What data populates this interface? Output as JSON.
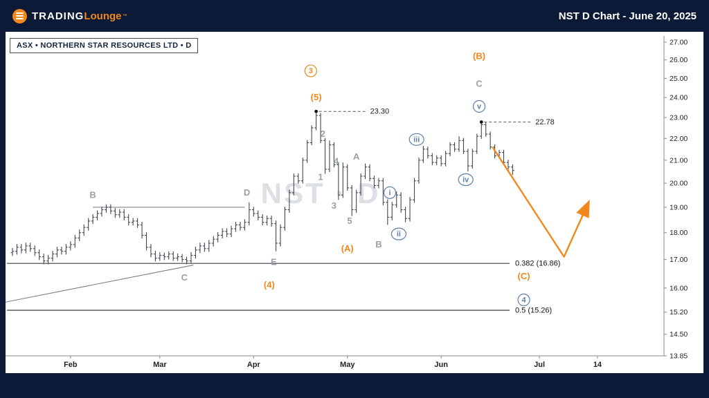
{
  "header": {
    "logo": {
      "word1": "TRADING",
      "word2": "Lounge",
      "tm": "™"
    },
    "title": "NST D Chart - June 20, 2025"
  },
  "chart": {
    "ticker_label": "ASX • NORTHERN STAR RESOURCES LTD • D",
    "watermark": "NST · D"
  },
  "colors": {
    "navy": "#0c1a37",
    "orange": "#f0881c",
    "gray_label": "#9aa0a7",
    "blue_label": "#5d7fab",
    "candle": "#42464d",
    "watermark": "#dcdfe3",
    "axis_text": "#222222",
    "callout_text": "#222222",
    "fib_line": "#3f3f3f",
    "struct_line": "#80868e"
  },
  "chart_data": {
    "type": "candlestick-ohlc",
    "symbol": "NST",
    "exchange": "ASX",
    "timeframe": "D",
    "title": "NST D Chart - June 20, 2025",
    "y_axis": {
      "scale": "log",
      "tick_labels": [
        "27.00",
        "26.00",
        "25.00",
        "24.00",
        "23.00",
        "22.00",
        "21.00",
        "20.00",
        "19.00",
        "18.00",
        "17.00",
        "16.00",
        "15.20",
        "14.50",
        "13.85"
      ]
    },
    "x_axis": {
      "months": [
        {
          "label": "Feb",
          "i": 13
        },
        {
          "label": "Mar",
          "i": 33
        },
        {
          "label": "Apr",
          "i": 54
        },
        {
          "label": "May",
          "i": 75
        },
        {
          "label": "Jun",
          "i": 96
        },
        {
          "label": "Jul",
          "i": 118
        },
        {
          "label": "14",
          "i": 131
        }
      ]
    },
    "candles": [
      [
        17.25,
        17.42,
        17.13,
        17.3
      ],
      [
        17.3,
        17.57,
        17.18,
        17.45
      ],
      [
        17.45,
        17.57,
        17.23,
        17.35
      ],
      [
        17.35,
        17.62,
        17.23,
        17.5
      ],
      [
        17.5,
        17.62,
        17.28,
        17.4
      ],
      [
        17.4,
        17.52,
        17.13,
        17.25
      ],
      [
        17.25,
        17.37,
        16.98,
        17.1
      ],
      [
        17.1,
        17.22,
        16.83,
        16.95
      ],
      [
        16.95,
        17.17,
        16.83,
        17.05
      ],
      [
        17.05,
        17.32,
        16.93,
        17.2
      ],
      [
        17.2,
        17.47,
        17.08,
        17.35
      ],
      [
        17.35,
        17.47,
        17.18,
        17.3
      ],
      [
        17.3,
        17.57,
        17.18,
        17.45
      ],
      [
        17.45,
        17.67,
        17.33,
        17.55
      ],
      [
        17.55,
        17.92,
        17.43,
        17.8
      ],
      [
        17.8,
        18.12,
        17.68,
        18.0
      ],
      [
        18.0,
        18.32,
        17.88,
        18.2
      ],
      [
        18.2,
        18.57,
        18.08,
        18.45
      ],
      [
        18.45,
        18.72,
        18.33,
        18.6
      ],
      [
        18.6,
        18.87,
        18.48,
        18.75
      ],
      [
        18.75,
        19.02,
        18.63,
        18.9
      ],
      [
        18.9,
        19.12,
        18.78,
        19.0
      ],
      [
        19.0,
        19.12,
        18.73,
        18.85
      ],
      [
        18.85,
        18.97,
        18.58,
        18.7
      ],
      [
        18.7,
        18.92,
        18.58,
        18.8
      ],
      [
        18.8,
        18.92,
        18.48,
        18.6
      ],
      [
        18.6,
        18.72,
        18.28,
        18.4
      ],
      [
        18.4,
        18.57,
        18.28,
        18.45
      ],
      [
        18.45,
        18.57,
        18.18,
        18.3
      ],
      [
        18.3,
        18.42,
        17.78,
        17.9
      ],
      [
        17.9,
        18.02,
        17.33,
        17.45
      ],
      [
        17.45,
        17.57,
        17.08,
        17.2
      ],
      [
        17.2,
        17.32,
        16.93,
        17.05
      ],
      [
        17.05,
        17.27,
        16.95,
        17.15
      ],
      [
        17.15,
        17.25,
        16.98,
        17.1
      ],
      [
        17.1,
        17.3,
        17.0,
        17.2
      ],
      [
        17.2,
        17.3,
        16.95,
        17.05
      ],
      [
        17.05,
        17.22,
        16.95,
        17.1
      ],
      [
        17.1,
        17.2,
        16.9,
        17.0
      ],
      [
        17.0,
        17.1,
        16.83,
        16.95
      ],
      [
        16.95,
        17.27,
        16.85,
        17.15
      ],
      [
        17.15,
        17.47,
        17.03,
        17.35
      ],
      [
        17.35,
        17.62,
        17.23,
        17.5
      ],
      [
        17.5,
        17.62,
        17.28,
        17.4
      ],
      [
        17.4,
        17.72,
        17.28,
        17.6
      ],
      [
        17.6,
        17.87,
        17.48,
        17.75
      ],
      [
        17.75,
        18.02,
        17.63,
        17.9
      ],
      [
        17.9,
        18.17,
        17.78,
        18.05
      ],
      [
        18.05,
        18.17,
        17.83,
        17.95
      ],
      [
        17.95,
        18.27,
        17.83,
        18.15
      ],
      [
        18.15,
        18.42,
        18.03,
        18.3
      ],
      [
        18.3,
        18.42,
        18.08,
        18.2
      ],
      [
        18.2,
        18.52,
        18.08,
        18.4
      ],
      [
        18.4,
        19.2,
        18.28,
        18.9
      ],
      [
        18.9,
        19.02,
        18.63,
        18.75
      ],
      [
        18.75,
        18.87,
        18.48,
        18.6
      ],
      [
        18.6,
        18.72,
        18.28,
        18.4
      ],
      [
        18.4,
        18.67,
        18.28,
        18.55
      ],
      [
        18.55,
        18.67,
        18.23,
        18.35
      ],
      [
        18.35,
        18.47,
        17.3,
        17.6
      ],
      [
        17.6,
        18.32,
        17.48,
        18.2
      ],
      [
        18.2,
        19.02,
        18.08,
        18.9
      ],
      [
        18.9,
        19.72,
        18.78,
        19.6
      ],
      [
        19.6,
        20.42,
        19.48,
        20.3
      ],
      [
        20.3,
        20.42,
        19.98,
        20.1
      ],
      [
        20.1,
        21.12,
        19.98,
        21.0
      ],
      [
        21.0,
        21.92,
        20.88,
        21.8
      ],
      [
        21.8,
        22.62,
        21.68,
        22.5
      ],
      [
        22.5,
        23.3,
        22.38,
        23.1
      ],
      [
        23.1,
        23.22,
        21.78,
        21.9
      ],
      [
        21.9,
        22.02,
        20.4,
        20.6
      ],
      [
        20.6,
        21.9,
        20.48,
        21.7
      ],
      [
        21.7,
        21.82,
        20.68,
        20.8
      ],
      [
        20.8,
        20.92,
        19.3,
        19.5
      ],
      [
        19.5,
        20.9,
        19.38,
        20.7
      ],
      [
        20.7,
        20.82,
        19.68,
        19.8
      ],
      [
        19.8,
        19.92,
        18.65,
        18.9
      ],
      [
        18.9,
        19.72,
        18.78,
        19.6
      ],
      [
        19.6,
        20.42,
        19.48,
        20.3
      ],
      [
        20.3,
        20.85,
        20.18,
        20.7
      ],
      [
        20.7,
        20.82,
        20.08,
        20.2
      ],
      [
        20.2,
        20.32,
        19.78,
        19.9
      ],
      [
        19.9,
        20.22,
        19.78,
        20.1
      ],
      [
        20.1,
        20.22,
        19.08,
        19.2
      ],
      [
        19.2,
        19.32,
        18.3,
        18.6
      ],
      [
        18.6,
        19.22,
        18.48,
        19.1
      ],
      [
        19.1,
        19.65,
        18.98,
        19.5
      ],
      [
        19.5,
        19.62,
        18.78,
        18.9
      ],
      [
        18.9,
        19.02,
        18.4,
        18.55
      ],
      [
        18.55,
        19.42,
        18.43,
        19.3
      ],
      [
        19.3,
        20.22,
        19.18,
        20.1
      ],
      [
        20.1,
        21.12,
        19.98,
        21.0
      ],
      [
        21.0,
        21.65,
        20.88,
        21.5
      ],
      [
        21.5,
        21.62,
        21.08,
        21.2
      ],
      [
        21.2,
        21.32,
        20.78,
        20.9
      ],
      [
        20.9,
        21.22,
        20.78,
        21.1
      ],
      [
        21.1,
        21.22,
        20.73,
        20.85
      ],
      [
        20.85,
        21.42,
        20.73,
        21.3
      ],
      [
        21.3,
        21.82,
        21.18,
        21.7
      ],
      [
        21.7,
        21.82,
        21.38,
        21.5
      ],
      [
        21.5,
        22.1,
        21.38,
        21.9
      ],
      [
        21.9,
        22.02,
        21.28,
        21.4
      ],
      [
        21.4,
        21.52,
        20.5,
        20.75
      ],
      [
        20.75,
        21.52,
        20.63,
        21.4
      ],
      [
        21.4,
        22.22,
        21.28,
        22.1
      ],
      [
        22.1,
        22.78,
        21.98,
        22.65
      ],
      [
        22.65,
        22.77,
        22.08,
        22.2
      ],
      [
        22.2,
        22.32,
        21.48,
        21.6
      ],
      [
        21.6,
        21.72,
        21.08,
        21.2
      ],
      [
        21.2,
        21.47,
        21.08,
        21.35
      ],
      [
        21.35,
        21.47,
        20.78,
        20.9
      ],
      [
        20.9,
        21.02,
        20.58,
        20.7
      ],
      [
        20.7,
        20.82,
        20.35,
        20.55
      ]
    ],
    "price_callouts": [
      {
        "label": "23.30",
        "price": 23.3,
        "i": 68
      },
      {
        "label": "22.78",
        "price": 22.78,
        "i": 105
      }
    ],
    "fib_levels": [
      {
        "label": "0.382 (16.86)",
        "price": 16.86
      },
      {
        "label": "0.5 (15.26)",
        "price": 15.26
      }
    ],
    "lines": [
      {
        "name": "b-d-resistance-line",
        "from": [
          18,
          19.0
        ],
        "to": [
          52,
          19.0
        ]
      },
      {
        "name": "rising-trendline",
        "from": [
          -2.5,
          15.5
        ],
        "to": [
          40.5,
          16.8
        ]
      }
    ],
    "projection": {
      "points": [
        [
          107.5,
          21.6
        ],
        [
          123.5,
          17.1
        ],
        [
          128.5,
          19.0
        ]
      ]
    },
    "wave_labels": [
      {
        "text": "3",
        "i": 66.8,
        "price": 25.4,
        "color": "orange",
        "circled": true
      },
      {
        "text": "(5)",
        "i": 68,
        "price": 24.0,
        "color": "orange"
      },
      {
        "text": "(B)",
        "i": 104.5,
        "price": 26.2,
        "color": "orange"
      },
      {
        "text": "C",
        "i": 104.5,
        "price": 24.7,
        "color": "gray"
      },
      {
        "text": "v",
        "i": 104.5,
        "price": 23.55,
        "color": "blue",
        "circled": true
      },
      {
        "text": "iii",
        "i": 90.5,
        "price": 21.95,
        "color": "blue",
        "circled": true
      },
      {
        "text": "iv",
        "i": 101.5,
        "price": 20.15,
        "color": "blue",
        "circled": true
      },
      {
        "text": "i",
        "i": 84.5,
        "price": 19.6,
        "color": "blue",
        "circled": true
      },
      {
        "text": "ii",
        "i": 86.5,
        "price": 17.95,
        "color": "blue",
        "circled": true
      },
      {
        "text": "A",
        "i": 77,
        "price": 21.15,
        "color": "gray"
      },
      {
        "text": "B",
        "i": 82,
        "price": 17.55,
        "color": "gray"
      },
      {
        "text": "1",
        "i": 69,
        "price": 20.25,
        "color": "gray"
      },
      {
        "text": "2",
        "i": 69.5,
        "price": 22.2,
        "color": "gray"
      },
      {
        "text": "3",
        "i": 72,
        "price": 19.05,
        "color": "gray"
      },
      {
        "text": "4",
        "i": 72.5,
        "price": 20.95,
        "color": "gray"
      },
      {
        "text": "5",
        "i": 75.5,
        "price": 18.45,
        "color": "gray"
      },
      {
        "text": "B",
        "i": 18,
        "price": 19.5,
        "color": "gray"
      },
      {
        "text": "D",
        "i": 52.5,
        "price": 19.6,
        "color": "gray"
      },
      {
        "text": "C",
        "i": 38.5,
        "price": 16.35,
        "color": "gray"
      },
      {
        "text": "E",
        "i": 58.5,
        "price": 16.9,
        "color": "gray"
      },
      {
        "text": "(A)",
        "i": 75,
        "price": 17.4,
        "color": "orange"
      },
      {
        "text": "(4)",
        "i": 57.5,
        "price": 16.1,
        "color": "orange"
      },
      {
        "text": "(C)",
        "i": 114.5,
        "price": 16.4,
        "color": "orange"
      },
      {
        "text": "4",
        "i": 114.5,
        "price": 15.6,
        "color": "blue",
        "circled": true
      }
    ]
  }
}
